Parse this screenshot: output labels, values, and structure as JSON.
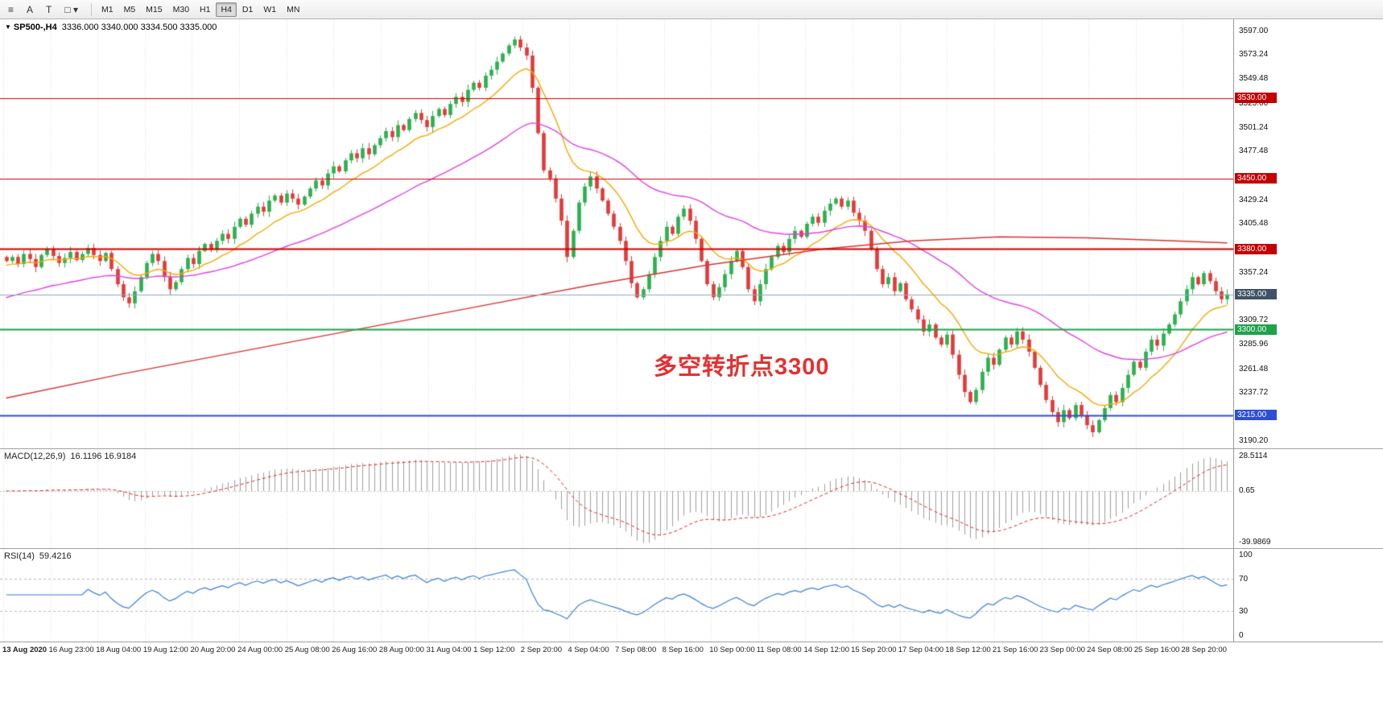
{
  "ui": {
    "collapse_glyph": "▼"
  },
  "toolbar": {
    "tools": [
      {
        "name": "grid-icon",
        "glyph": "≡"
      },
      {
        "name": "cursor-a-icon",
        "glyph": "A"
      },
      {
        "name": "text-tool-icon",
        "glyph": "T"
      },
      {
        "name": "shapes-tool-icon",
        "glyph": "□",
        "caret": "▾"
      }
    ],
    "timeframes": [
      "M1",
      "M5",
      "M15",
      "M30",
      "H1",
      "H4",
      "D1",
      "W1",
      "MN"
    ],
    "active_timeframe": "H4"
  },
  "chart": {
    "symbol_period": "SP500-,H4",
    "ohlc_text": "3336.000 3340.000 3334.500 3335.000",
    "annotation": {
      "text": "多空转折点3300",
      "color": "#e53030"
    },
    "hlines": [
      {
        "value": 3530,
        "color": "#cc0000",
        "width": 1
      },
      {
        "value": 3450,
        "color": "#cc0000",
        "width": 1
      },
      {
        "value": 3380,
        "color": "#cc0000",
        "width": 2
      },
      {
        "value": 3300,
        "color": "#1fa24a",
        "width": 2
      },
      {
        "value": 3215,
        "color": "#2d4ed8",
        "width": 2
      },
      {
        "value": 3335,
        "color": "#8fa6bc",
        "width": 1
      }
    ],
    "price_axis": {
      "ticks": [
        {
          "value": 3597.0,
          "label": "3597.00"
        },
        {
          "value": 3573.24,
          "label": "3573.24"
        },
        {
          "value": 3549.48,
          "label": "3549.48"
        },
        {
          "value": 3525.0,
          "label": "3525.00"
        },
        {
          "value": 3501.24,
          "label": "3501.24"
        },
        {
          "value": 3477.48,
          "label": "3477.48"
        },
        {
          "value": 3429.24,
          "label": "3429.24"
        },
        {
          "value": 3405.48,
          "label": "3405.48"
        },
        {
          "value": 3357.24,
          "label": "3357.24"
        },
        {
          "value": 3309.72,
          "label": "3309.72"
        },
        {
          "value": 3285.96,
          "label": "3285.96"
        },
        {
          "value": 3261.48,
          "label": "3261.48"
        },
        {
          "value": 3237.72,
          "label": "3237.72"
        },
        {
          "value": 3190.2,
          "label": "3190.20"
        }
      ],
      "badges": [
        {
          "value": 3530,
          "label": "3530.00",
          "color": "#c40000"
        },
        {
          "value": 3450,
          "label": "3450.00",
          "color": "#c40000"
        },
        {
          "value": 3380,
          "label": "3380.00",
          "color": "#c40000"
        },
        {
          "value": 3335,
          "label": "3335.00",
          "color": "#3f5266"
        },
        {
          "value": 3300,
          "label": "3300.00",
          "color": "#1fa24a"
        },
        {
          "value": 3215,
          "label": "3215.00",
          "color": "#2d4ed8"
        }
      ]
    },
    "time_labels": [
      "13 Aug 2020",
      "16 Aug 23:00",
      "18 Aug 04:00",
      "19 Aug 12:00",
      "20 Aug 20:00",
      "24 Aug 00:00",
      "25 Aug 08:00",
      "26 Aug 16:00",
      "28 Aug 00:00",
      "31 Aug 04:00",
      "1 Sep 12:00",
      "2 Sep 20:00",
      "4 Sep 04:00",
      "7 Sep 08:00",
      "8 Sep 16:00",
      "10 Sep 00:00",
      "11 Sep 08:00",
      "14 Sep 12:00",
      "15 Sep 20:00",
      "17 Sep 04:00",
      "18 Sep 12:00",
      "21 Sep 16:00",
      "23 Sep 00:00",
      "24 Sep 08:00",
      "25 Sep 16:00",
      "28 Sep 20:00"
    ]
  },
  "chart_data": {
    "type": "candlestick",
    "symbol": "SP500-",
    "timeframe": "H4",
    "y_range": [
      3182,
      3608
    ],
    "closes": [
      3368,
      3372,
      3365,
      3375,
      3370,
      3362,
      3374,
      3380,
      3373,
      3366,
      3371,
      3377,
      3369,
      3375,
      3381,
      3374,
      3368,
      3376,
      3360,
      3345,
      3332,
      3326,
      3338,
      3352,
      3366,
      3375,
      3368,
      3352,
      3340,
      3347,
      3360,
      3371,
      3365,
      3378,
      3385,
      3379,
      3388,
      3395,
      3390,
      3402,
      3410,
      3404,
      3415,
      3422,
      3417,
      3428,
      3433,
      3426,
      3435,
      3430,
      3424,
      3432,
      3440,
      3448,
      3443,
      3455,
      3462,
      3457,
      3468,
      3475,
      3470,
      3480,
      3474,
      3483,
      3490,
      3497,
      3491,
      3503,
      3498,
      3509,
      3515,
      3508,
      3501,
      3512,
      3519,
      3513,
      3524,
      3531,
      3526,
      3538,
      3545,
      3540,
      3552,
      3558,
      3566,
      3574,
      3582,
      3588,
      3580,
      3572,
      3540,
      3495,
      3458,
      3450,
      3430,
      3408,
      3372,
      3398,
      3426,
      3442,
      3452,
      3440,
      3428,
      3415,
      3402,
      3388,
      3368,
      3346,
      3332,
      3340,
      3355,
      3372,
      3388,
      3402,
      3395,
      3412,
      3420,
      3408,
      3390,
      3368,
      3345,
      3332,
      3342,
      3355,
      3368,
      3378,
      3362,
      3340,
      3328,
      3345,
      3360,
      3372,
      3383,
      3377,
      3390,
      3398,
      3392,
      3405,
      3412,
      3406,
      3418,
      3425,
      3430,
      3422,
      3428,
      3416,
      3408,
      3398,
      3380,
      3360,
      3345,
      3352,
      3338,
      3346,
      3330,
      3320,
      3310,
      3298,
      3305,
      3292,
      3285,
      3295,
      3275,
      3255,
      3238,
      3228,
      3240,
      3258,
      3272,
      3265,
      3280,
      3292,
      3285,
      3298,
      3290,
      3278,
      3262,
      3245,
      3230,
      3218,
      3208,
      3220,
      3212,
      3225,
      3215,
      3205,
      3198,
      3210,
      3222,
      3235,
      3228,
      3242,
      3255,
      3268,
      3262,
      3278,
      3290,
      3284,
      3296,
      3305,
      3315,
      3328,
      3340,
      3352,
      3345,
      3356,
      3348,
      3338,
      3330,
      3335
    ],
    "ma_slow_anchors": [
      [
        0,
        3232
      ],
      [
        20,
        3256
      ],
      [
        40,
        3278
      ],
      [
        60,
        3300
      ],
      [
        80,
        3322
      ],
      [
        100,
        3344
      ],
      [
        120,
        3364
      ],
      [
        140,
        3380
      ],
      [
        155,
        3388
      ],
      [
        170,
        3392
      ],
      [
        185,
        3391
      ],
      [
        200,
        3388
      ],
      [
        209,
        3386
      ]
    ],
    "colors": {
      "up": "#2db14f",
      "down": "#e23b3b",
      "ma_fast": "#f6a800",
      "ma_mid": "#e13fe1",
      "ma_slow": "#d53434"
    }
  },
  "macd": {
    "label": "MACD(12,26,9)",
    "values": "16.1196 16.9184",
    "axis": [
      "28.5114",
      "0.65",
      "-39.9869"
    ],
    "signal_color": "#dd2525",
    "hist_color": "#9e9e9e"
  },
  "rsi": {
    "label": "RSI(14)",
    "value": "59.4216",
    "line_color": "#3b7dd8",
    "levels": [
      70,
      30
    ],
    "axis": [
      {
        "value": 100,
        "label": "100"
      },
      {
        "value": 70,
        "label": "70"
      },
      {
        "value": 30,
        "label": "30"
      },
      {
        "value": 0,
        "label": "0"
      }
    ]
  }
}
